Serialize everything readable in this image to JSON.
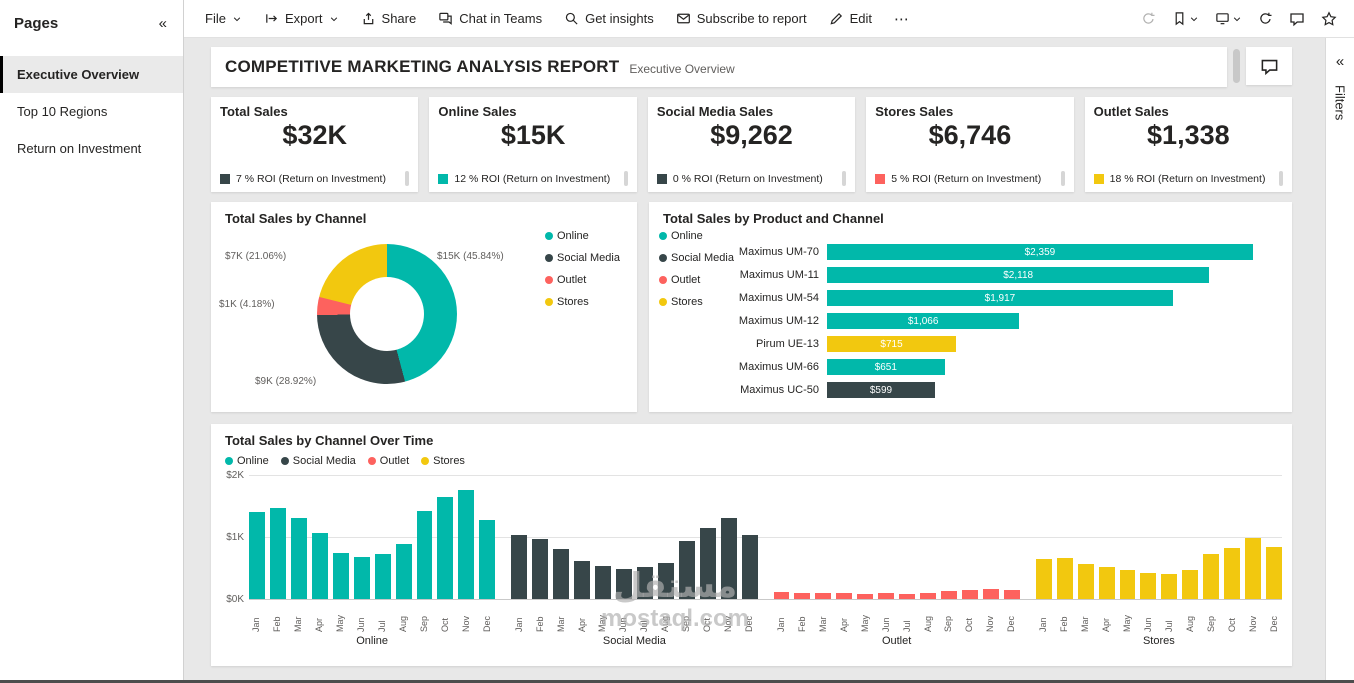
{
  "sidebar": {
    "title": "Pages",
    "items": [
      {
        "label": "Executive Overview",
        "selected": true
      },
      {
        "label": "Top 10 Regions",
        "selected": false
      },
      {
        "label": "Return on Investment",
        "selected": false
      }
    ]
  },
  "toolbar": {
    "items": [
      {
        "label": "File",
        "chevron": true
      },
      {
        "label": "Export",
        "icon": "export-icon",
        "chevron": true
      },
      {
        "label": "Share",
        "icon": "share-icon"
      },
      {
        "label": "Chat in Teams",
        "icon": "chat-in-teams-icon"
      },
      {
        "label": "Get insights",
        "icon": "get-insights-icon"
      },
      {
        "label": "Subscribe to report",
        "icon": "subscribe-icon"
      },
      {
        "label": "Edit",
        "icon": "edit-icon"
      }
    ],
    "more_label": "⋯",
    "right_icons": [
      {
        "icon": "reset-icon",
        "disabled": true
      },
      {
        "icon": "bookmark-icon",
        "chevron": true
      },
      {
        "icon": "view-icon",
        "chevron": true
      },
      {
        "icon": "refresh-icon"
      },
      {
        "icon": "comment-icon"
      },
      {
        "icon": "favorite-icon"
      }
    ]
  },
  "report": {
    "title": "COMPETITIVE MARKETING ANALYSIS REPORT",
    "subtitle": "Executive Overview"
  },
  "filters_panel": {
    "label": "Filters"
  },
  "kpi_cards": [
    {
      "title": "Total Sales",
      "value": "$32K",
      "roi": "7 % ROI (Return on Investment)",
      "color": "#374649"
    },
    {
      "title": "Online Sales",
      "value": "$15K",
      "roi": "12 % ROI (Return on Investment)",
      "color": "#01B8AA"
    },
    {
      "title": "Social Media Sales",
      "value": "$9,262",
      "roi": "0 % ROI (Return on Investment)",
      "color": "#374649"
    },
    {
      "title": "Stores Sales",
      "value": "$6,746",
      "roi": "5 % ROI (Return on Investment)",
      "color": "#FD625E"
    },
    {
      "title": "Outlet Sales",
      "value": "$1,338",
      "roi": "18 % ROI (Return on Investment)",
      "color": "#F2C80F"
    }
  ],
  "chart_data": [
    {
      "type": "pie",
      "title": "Total Sales by Channel",
      "legend": [
        {
          "label": "Online",
          "color": "#01B8AA"
        },
        {
          "label": "Social Media",
          "color": "#374649"
        },
        {
          "label": "Outlet",
          "color": "#FD625E"
        },
        {
          "label": "Stores",
          "color": "#F2C80F"
        }
      ],
      "slices": [
        {
          "label": "Online",
          "value": 15000,
          "pct": 45.84,
          "value_label": "$15K (45.84%)",
          "color": "#01B8AA"
        },
        {
          "label": "Social Media",
          "value": 9000,
          "pct": 28.92,
          "value_label": "$9K (28.92%)",
          "color": "#374649"
        },
        {
          "label": "Outlet",
          "value": 1000,
          "pct": 4.18,
          "value_label": "$1K (4.18%)",
          "color": "#FD625E"
        },
        {
          "label": "Stores",
          "value": 7000,
          "pct": 21.06,
          "value_label": "$7K (21.06%)",
          "color": "#F2C80F"
        }
      ]
    },
    {
      "type": "bar",
      "title": "Total Sales by Product and Channel",
      "legend": [
        {
          "label": "Online",
          "color": "#01B8AA"
        },
        {
          "label": "Social Media",
          "color": "#374649"
        },
        {
          "label": "Outlet",
          "color": "#FD625E"
        },
        {
          "label": "Stores",
          "color": "#F2C80F"
        }
      ],
      "bars": [
        {
          "category": "Maximus UM-70",
          "value": 2359,
          "label": "$2,359",
          "color": "#01B8AA"
        },
        {
          "category": "Maximus UM-11",
          "value": 2118,
          "label": "$2,118",
          "color": "#01B8AA"
        },
        {
          "category": "Maximus UM-54",
          "value": 1917,
          "label": "$1,917",
          "color": "#01B8AA"
        },
        {
          "category": "Maximus UM-12",
          "value": 1066,
          "label": "$1,066",
          "color": "#01B8AA"
        },
        {
          "category": "Pirum UE-13",
          "value": 715,
          "label": "$715",
          "color": "#F2C80F"
        },
        {
          "category": "Maximus UM-66",
          "value": 651,
          "label": "$651",
          "color": "#01B8AA"
        },
        {
          "category": "Maximus UC-50",
          "value": 599,
          "label": "$599",
          "color": "#374649"
        }
      ]
    },
    {
      "type": "bar",
      "title": "Total Sales by Channel Over Time",
      "months": [
        "Jan",
        "Feb",
        "Mar",
        "Apr",
        "May",
        "Jun",
        "Jul",
        "Aug",
        "Sep",
        "Oct",
        "Nov",
        "Dec"
      ],
      "ylabels": [
        "$0K",
        "$1K",
        "$2K"
      ],
      "ylim": [
        0,
        2000
      ],
      "legend": [
        {
          "label": "Online",
          "color": "#01B8AA"
        },
        {
          "label": "Social Media",
          "color": "#374649"
        },
        {
          "label": "Outlet",
          "color": "#FD625E"
        },
        {
          "label": "Stores",
          "color": "#F2C80F"
        }
      ],
      "series": [
        {
          "name": "Online",
          "color": "#01B8AA",
          "values": [
            1400,
            1470,
            1310,
            1060,
            740,
            680,
            720,
            890,
            1420,
            1650,
            1760,
            1280
          ]
        },
        {
          "name": "Social Media",
          "color": "#374649",
          "values": [
            1030,
            960,
            800,
            620,
            540,
            480,
            510,
            580,
            930,
            1150,
            1300,
            1040
          ]
        },
        {
          "name": "Outlet",
          "color": "#FD625E",
          "values": [
            110,
            100,
            90,
            100,
            85,
            90,
            80,
            95,
            130,
            150,
            160,
            140
          ]
        },
        {
          "name": "Stores",
          "color": "#F2C80F",
          "values": [
            650,
            660,
            560,
            510,
            460,
            420,
            410,
            460,
            720,
            830,
            980,
            840
          ]
        }
      ]
    }
  ],
  "watermark": {
    "line1": "مستقل",
    "line2": "mostaql.com"
  },
  "colors": {
    "online": "#01B8AA",
    "social_media": "#374649",
    "outlet": "#FD625E",
    "stores": "#F2C80F"
  }
}
